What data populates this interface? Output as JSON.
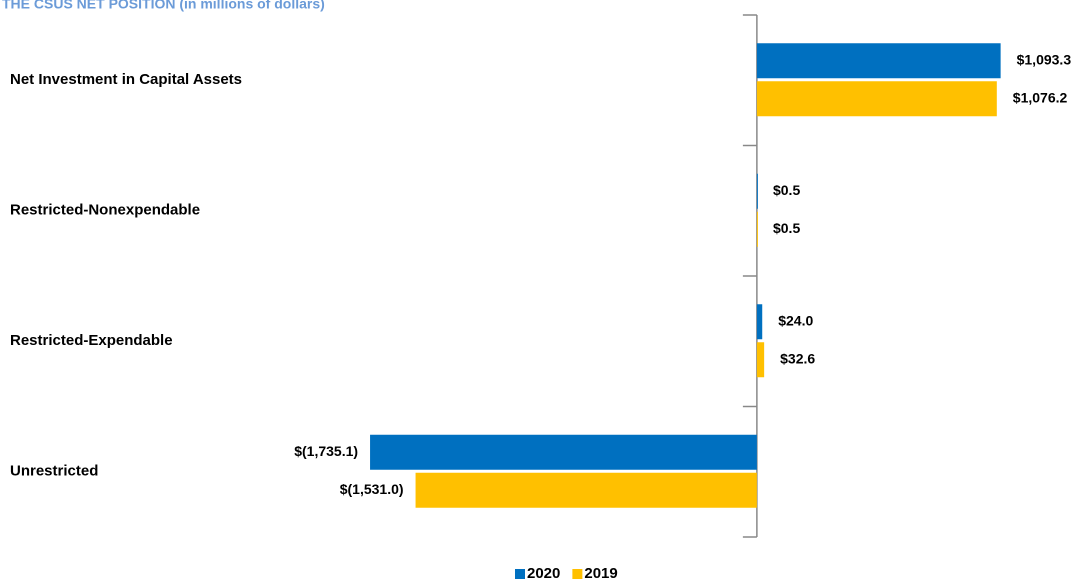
{
  "chart_data": {
    "type": "hbar",
    "title": "THE CSUS NET POSITION (in millions  of dollars)",
    "categories": [
      "Net Investment in Capital Assets",
      "Restricted-Nonexpendable",
      "Restricted-Expendable",
      "Unrestricted"
    ],
    "series": [
      {
        "name": "2020",
        "color": "#0070c0",
        "values": [
          1093.3,
          0.5,
          24.0,
          -1735.1
        ],
        "value_labels": [
          "$1,093.3",
          "$0.5",
          "$24.0",
          "$(1,735.1)"
        ]
      },
      {
        "name": "2019",
        "color": "#ffc000",
        "values": [
          1076.2,
          0.5,
          32.6,
          -1531.0
        ],
        "value_labels": [
          "$1,076.2",
          "$0.5",
          "$32.6",
          "$(1,531.0)"
        ]
      }
    ],
    "xlim": [
      -2000,
      1400
    ],
    "legend": "bottom"
  }
}
